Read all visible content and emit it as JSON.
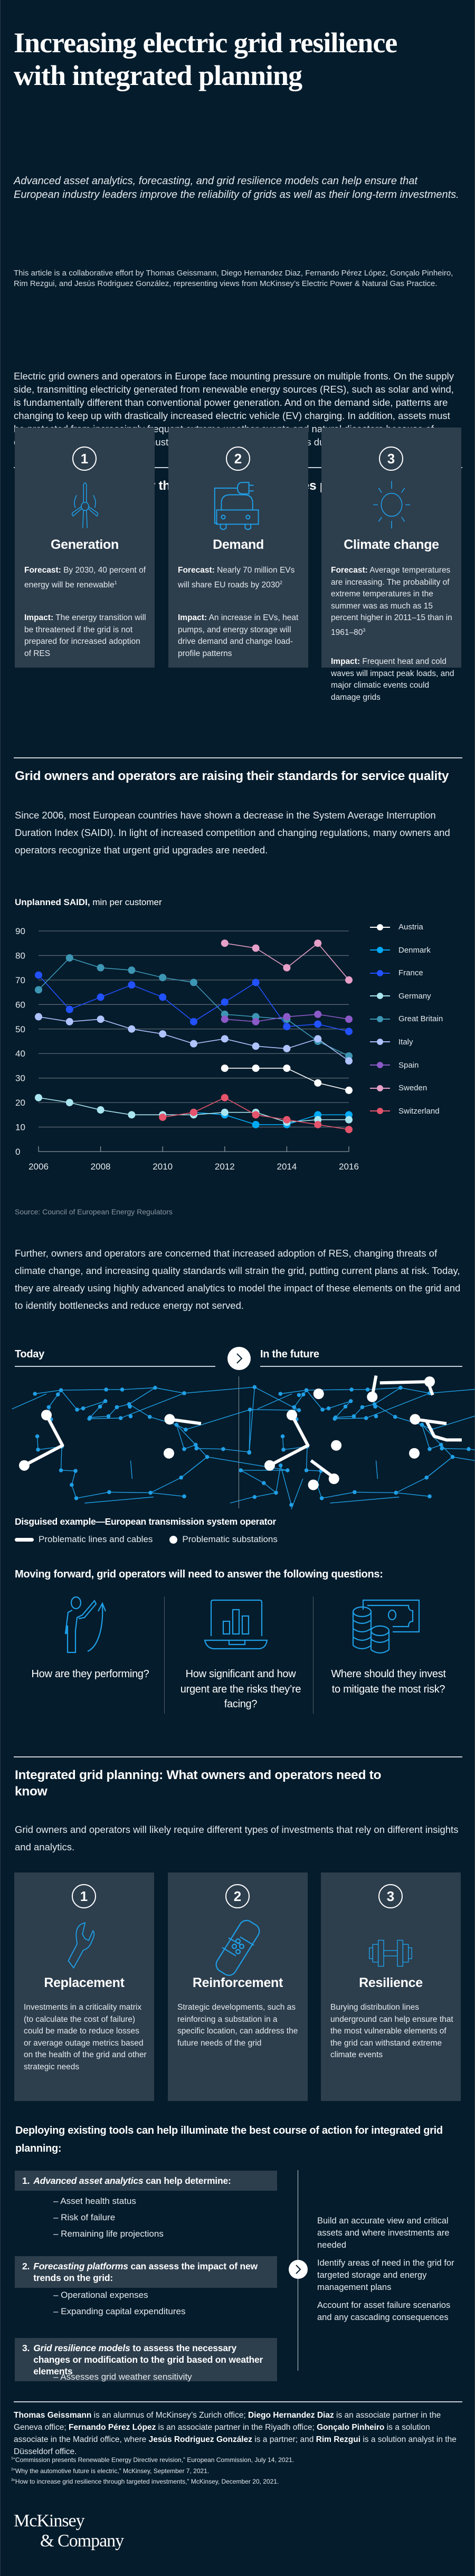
{
  "header": {
    "title_line1": "Increasing electric grid resilience",
    "title_line2": "with integrated planning",
    "deck": "Advanced asset analytics, forecasting, and grid resilience models can help ensure that European industry leaders improve the reliability of grids as well as their long-term investments.",
    "byline": "This article is a collaborative effort by Thomas Geissmann, Diego Hernandez Diaz, Fernando Pérez López, Gonçalo Pinheiro, Rim Rezgui, and Jesús Rodriguez González, representing views from McKinsey’s Electric Power & Natural Gas Practice."
  },
  "intro": "Electric grid owners and operators in Europe face mounting pressure on multiple fronts. On the supply side, transmitting electricity generated from renewable energy sources (RES), such as solar and wind, is fundamentally different than conventional power generation. And on the demand side, patterns are changing to keep up with drastically increased electric vehicle (EV) charging. In addition, assets must be protected from increasingly frequent extreme weather events and natural disasters because of climate change, and upgrades must be made to reflect energy needs during extreme temperatures.",
  "section1": {
    "heading": "Supply and demand for the EU power sector faces pressure from multiple fronts",
    "cards": [
      {
        "number": "1",
        "icon": "wind-turbine-icon",
        "title": "Generation",
        "forecast_label": "Forecast:",
        "forecast": " By 2030, 40 percent of energy will be renewable",
        "forecast_note": "1",
        "impact_label": "Impact:",
        "impact": " The energy transition will be threatened if the grid is not prepared for increased adoption of RES"
      },
      {
        "number": "2",
        "icon": "electric-car-icon",
        "title": "Demand",
        "forecast_label": "Forecast:",
        "forecast": " Nearly 70 million EVs will share EU roads by 2030",
        "forecast_note": "2",
        "impact_label": "Impact:",
        "impact": " An increase in EVs, heat pumps, and energy storage will drive demand and change load-profile patterns"
      },
      {
        "number": "3",
        "icon": "sun-icon",
        "title": "Climate change",
        "forecast_label": "Forecast:",
        "forecast": " Average temperatures are increasing. The probability of extreme temperatures in the summer was as much as 15 percent higher in 2011–15 than in 1961–80",
        "forecast_note": "3",
        "impact_label": "Impact:",
        "impact": " Frequent heat and cold waves will impact peak loads, and major climatic events could damage grids"
      }
    ]
  },
  "section2": {
    "heading": "Grid owners and operators are raising their standards for service quality",
    "body": "Since 2006, most European countries have shown a decrease in the System Average Interruption Duration Index (SAIDI). In light of increased competition and changing regulations, many owners and operators recognize that urgent grid upgrades are needed.",
    "chart_title_bold": "Unplanned SAIDI,",
    "chart_title_rest": " min per customer",
    "source": "Source: Council of European Energy Regulators",
    "body2": "Further, owners and operators are concerned that increased adoption of RES, changing threats of climate change, and increasing quality standards will strain the grid, putting current plans at risk. Today, they are already using highly advanced analytics to model the impact of these elements on the grid and to identify bottlenecks and reduce energy not served.",
    "map": {
      "today_label": "Today",
      "future_label": "In the future",
      "caption": "Disguised example—European transmission system operator",
      "legend_lines": "Problematic lines and cables",
      "legend_substations": "Problematic substations"
    },
    "questions_heading": "Moving forward, grid operators will need to answer the following questions:",
    "questions": [
      {
        "icon": "person-growth-icon",
        "text": "How are they performing?"
      },
      {
        "icon": "laptop-chart-icon",
        "text": "How significant and how urgent are the risks they’re facing?"
      },
      {
        "icon": "money-coins-icon",
        "text": "Where should they invest to mitigate the most risk?"
      }
    ]
  },
  "chart_data": {
    "type": "line",
    "title": "Unplanned SAIDI, min per customer",
    "xlabel": "",
    "ylabel": "min per customer",
    "x": [
      2006,
      2007,
      2008,
      2009,
      2010,
      2011,
      2012,
      2013,
      2014,
      2015,
      2016
    ],
    "xticks": [
      "2006",
      "2008",
      "2010",
      "2012",
      "2014",
      "2016"
    ],
    "yticks": [
      "0",
      "10",
      "20",
      "30",
      "40",
      "50",
      "60",
      "70",
      "80",
      "90"
    ],
    "ylim": [
      0,
      90
    ],
    "grid": true,
    "legend": "right",
    "series": [
      {
        "name": "Austria",
        "color": "#ffffff",
        "values": [
          null,
          null,
          null,
          null,
          null,
          null,
          34,
          34,
          34,
          28,
          25
        ]
      },
      {
        "name": "Denmark",
        "color": "#00a9f4",
        "values": [
          null,
          null,
          null,
          null,
          null,
          16,
          15,
          11,
          11,
          15,
          15
        ]
      },
      {
        "name": "France",
        "color": "#2251ff",
        "values": [
          72,
          58,
          63,
          68,
          63,
          53,
          61,
          69,
          51,
          52,
          49
        ]
      },
      {
        "name": "Germany",
        "color": "#aae6f0",
        "values": [
          22,
          20,
          17,
          15,
          15,
          15,
          16,
          16,
          12,
          13,
          13
        ]
      },
      {
        "name": "Great Britain",
        "color": "#3c96b4",
        "values": [
          66,
          79,
          75,
          74,
          71,
          69,
          56,
          55,
          54,
          45,
          39
        ]
      },
      {
        "name": "Italy",
        "color": "#afc3ff",
        "values": [
          55,
          53,
          54,
          50,
          48,
          44,
          46,
          43,
          42,
          46,
          37
        ]
      },
      {
        "name": "Spain",
        "color": "#8c5ac8",
        "values": [
          null,
          null,
          null,
          null,
          null,
          null,
          54,
          53,
          55,
          56,
          54
        ]
      },
      {
        "name": "Sweden",
        "color": "#e6a0c8",
        "values": [
          null,
          null,
          null,
          null,
          null,
          null,
          85,
          83,
          75,
          85,
          70
        ]
      },
      {
        "name": "Switzerland",
        "color": "#e5546c",
        "values": [
          null,
          null,
          null,
          null,
          14,
          16,
          22,
          15,
          13,
          11,
          9
        ]
      }
    ]
  },
  "section3": {
    "heading": "Integrated grid planning: What owners and operators need to know",
    "body": "Grid owners and operators will likely require different types of investments that rely on different insights and analytics.",
    "cards": [
      {
        "number": "1",
        "icon": "wrench-icon",
        "title": "Replacement",
        "text": "Investments in a criticality matrix (to calculate the cost of failure) could be made to reduce losses or average outage metrics based on the health of the grid and other strategic needs"
      },
      {
        "number": "2",
        "icon": "bandage-icon",
        "title": "Reinforcement",
        "text": "Strategic developments, such as reinforcing a substation in a specific location, can address the future needs of the grid"
      },
      {
        "number": "3",
        "icon": "dumbbell-icon",
        "title": "Resilience",
        "text": "Burying distribution lines underground can help ensure that the most vulnerable elements of the grid can withstand extreme climate events"
      }
    ],
    "tools_heading": "Deploying existing tools can help illuminate the best course of action for integrated grid planning:",
    "tools": [
      {
        "num": "1.",
        "italic": "Advanced asset analytics",
        "rest": " can help determine:",
        "items": [
          "– Asset health status",
          "– Risk of failure",
          "– Remaining life projections"
        ]
      },
      {
        "num": "2.",
        "italic": "Forecasting platforms",
        "rest": " can assess the impact of new trends on the grid:",
        "items": [
          "– Operational expenses",
          "– Expanding capital expenditures"
        ]
      },
      {
        "num": "3.",
        "italic": "Grid resilience models",
        "rest": " to assess the necessary changes or modification to the grid based on weather elements",
        "items": [
          "– Assesses grid weather sensitivity"
        ]
      }
    ],
    "outcomes": [
      "Build an accurate view and critical assets and where investments are needed",
      "Identify areas of need in the grid for targeted storage and energy management plans",
      "Account for asset failure scenarios and any cascading consequences"
    ]
  },
  "footer": {
    "bios": [
      {
        "name": "Thomas Geissmann",
        "text": " is an alumnus of McKinsey’s Zurich office; "
      },
      {
        "name": "Diego Hernandez Diaz",
        "text": " is an associate partner in the Geneva office; "
      },
      {
        "name": "Fernando Pérez López",
        "text": " is an associate partner in the Riyadh office; "
      },
      {
        "name": "Gonçalo Pinheiro",
        "text": " is a solution associate in the Madrid office, where "
      },
      {
        "name": "Jesús Rodriguez González",
        "text": " is a partner; and "
      },
      {
        "name": "Rim Rezgui",
        "text": " is a solution analyst in the Düsseldorf office."
      }
    ],
    "footnotes": [
      {
        "n": "1",
        "text": "“Commission presents Renewable Energy Directive revision,” European Commission, July 14, 2021."
      },
      {
        "n": "2",
        "text": "“Why the automotive future is electric,” McKinsey, September 7, 2021."
      },
      {
        "n": "3",
        "text": "“How to increase grid resilience through targeted investments,” McKinsey, December 20, 2021."
      }
    ],
    "logo_line1": "McKinsey",
    "logo_line2": "& Company"
  },
  "colors": {
    "background": "#051c2c",
    "card": "#2d3e4d",
    "accent": "#1f9fe6",
    "rule": "#c9d1d8"
  }
}
